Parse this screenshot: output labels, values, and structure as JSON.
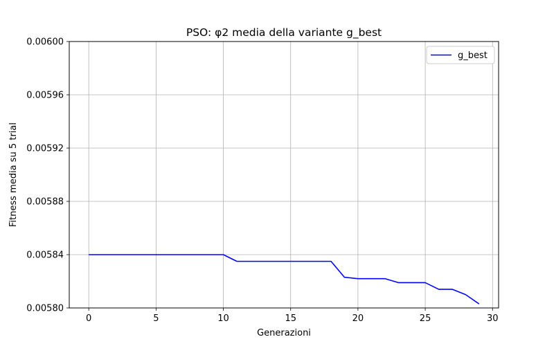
{
  "chart_data": {
    "type": "line",
    "title": "PSO: φ2 media della variante g_best",
    "xlabel": "Generazioni",
    "ylabel": "Fitness media su 5 trial",
    "xlim": [
      -1.45,
      30.45
    ],
    "ylim": [
      0.0058,
      0.006
    ],
    "xticks": [
      0,
      5,
      10,
      15,
      20,
      25,
      30
    ],
    "xtick_labels": [
      "0",
      "5",
      "10",
      "15",
      "20",
      "25",
      "30"
    ],
    "yticks": [
      0.0058,
      0.00584,
      0.00588,
      0.00592,
      0.00596,
      0.006
    ],
    "ytick_labels": [
      "0.00580",
      "0.00584",
      "0.00588",
      "0.00592",
      "0.00596",
      "0.00600"
    ],
    "grid": true,
    "legend_position": "upper right",
    "series": [
      {
        "name": "g_best",
        "color": "#0000ff",
        "x": [
          0,
          1,
          2,
          3,
          4,
          5,
          6,
          7,
          8,
          9,
          10,
          11,
          12,
          13,
          14,
          15,
          16,
          17,
          18,
          19,
          20,
          21,
          22,
          23,
          24,
          25,
          26,
          27,
          28,
          29
        ],
        "values": [
          0.00584,
          0.00584,
          0.00584,
          0.00584,
          0.00584,
          0.00584,
          0.00584,
          0.00584,
          0.00584,
          0.00584,
          0.00584,
          0.005835,
          0.005835,
          0.005835,
          0.005835,
          0.005835,
          0.005835,
          0.005835,
          0.005835,
          0.005823,
          0.005822,
          0.005822,
          0.005822,
          0.005819,
          0.005819,
          0.005819,
          0.005814,
          0.005814,
          0.00581,
          0.005803
        ]
      }
    ]
  }
}
